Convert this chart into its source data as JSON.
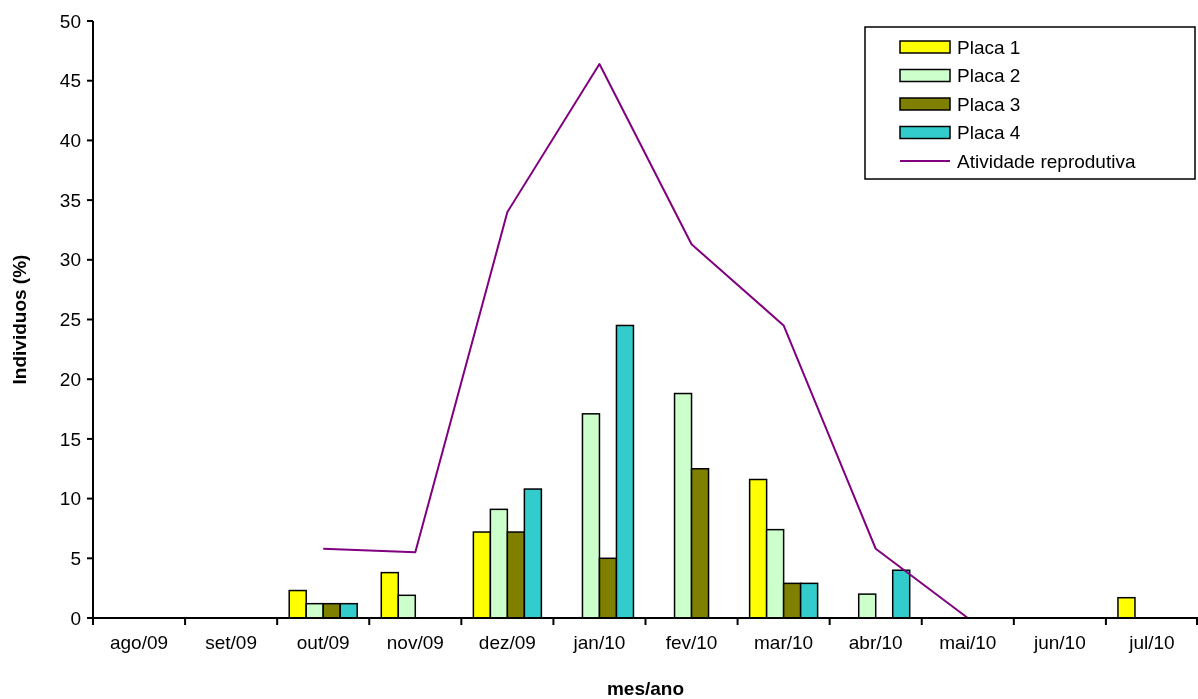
{
  "chart_data": {
    "type": "bar",
    "xlabel": "mes/ano",
    "ylabel": "Individuos (%)",
    "categories": [
      "ago/09",
      "set/09",
      "out/09",
      "nov/09",
      "dez/09",
      "jan/10",
      "fev/10",
      "mar/10",
      "abr/10",
      "mai/10",
      "jun/10",
      "jul/10"
    ],
    "series": [
      {
        "name": "Placa 1",
        "color": "#ffff00",
        "values": [
          null,
          null,
          2.3,
          3.8,
          7.2,
          null,
          null,
          11.6,
          null,
          null,
          null,
          1.7
        ]
      },
      {
        "name": "Placa 2",
        "color": "#ccffcc",
        "values": [
          null,
          null,
          1.2,
          1.9,
          9.1,
          17.1,
          18.8,
          7.4,
          2.0,
          null,
          null,
          null
        ]
      },
      {
        "name": "Placa 3",
        "color": "#808000",
        "values": [
          null,
          null,
          1.2,
          null,
          7.2,
          5.0,
          12.5,
          2.9,
          null,
          null,
          null,
          null
        ]
      },
      {
        "name": "Placa 4",
        "color": "#33cccc",
        "values": [
          null,
          null,
          1.2,
          null,
          10.8,
          24.5,
          null,
          2.9,
          4.0,
          null,
          null,
          null
        ]
      },
      {
        "name": "Atividade reprodutiva",
        "type": "line",
        "color": "#800080",
        "values": [
          null,
          null,
          5.8,
          5.5,
          34.0,
          46.4,
          31.3,
          24.5,
          5.8,
          0,
          null,
          null
        ]
      }
    ],
    "ylim": [
      0,
      50
    ],
    "yticks": [
      0,
      5,
      10,
      15,
      20,
      25,
      30,
      35,
      40,
      45,
      50
    ],
    "grid": false,
    "legend": "top right"
  }
}
